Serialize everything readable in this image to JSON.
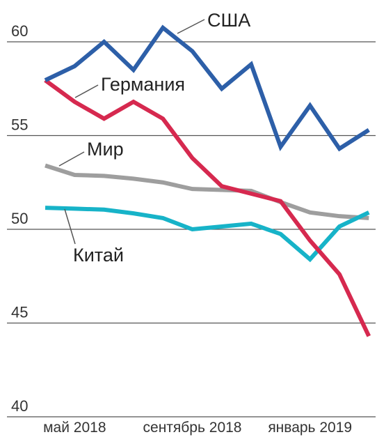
{
  "chart_data": {
    "type": "line",
    "categories": [
      null,
      "май 2018",
      null,
      null,
      null,
      "сентябрь 2018",
      null,
      null,
      null,
      "январь 2019",
      null,
      null
    ],
    "series": [
      {
        "name": "США",
        "color": "#2d5fa8",
        "values": [
          57.95,
          58.7,
          60.0,
          58.5,
          60.75,
          59.5,
          57.5,
          58.8,
          54.4,
          56.6,
          54.3,
          55.3
        ]
      },
      {
        "name": "Германия",
        "color": "#d6294f",
        "values": [
          57.95,
          56.8,
          55.9,
          56.8,
          55.9,
          53.8,
          52.3,
          51.9,
          51.5,
          49.4,
          47.6,
          44.3
        ]
      },
      {
        "name": "Мир",
        "color": "#9e9e9e",
        "values": [
          53.4,
          52.9,
          52.85,
          52.7,
          52.5,
          52.15,
          52.1,
          52.05,
          51.45,
          50.9,
          50.7,
          50.6
        ]
      },
      {
        "name": "Китай",
        "color": "#17b3c8",
        "values": [
          51.15,
          51.1,
          51.05,
          50.85,
          50.6,
          50.0,
          50.15,
          50.3,
          49.75,
          48.4,
          50.15,
          50.9
        ]
      }
    ],
    "ylim": [
      40,
      60
    ],
    "yticks": [
      40,
      45,
      50,
      55,
      60
    ],
    "grid": true
  }
}
